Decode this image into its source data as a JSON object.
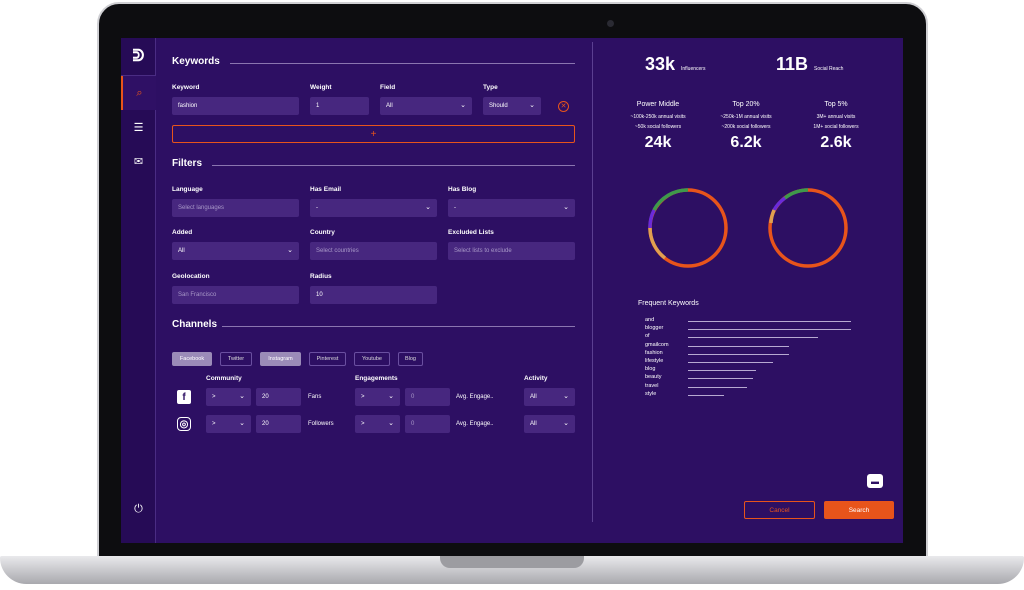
{
  "sidebar": {
    "logo_text": "ᕲ",
    "items": [
      {
        "icon": "search-icon",
        "glyph": "⌕"
      },
      {
        "icon": "list-icon",
        "glyph": "☰"
      },
      {
        "icon": "mail-icon",
        "glyph": "✉"
      }
    ],
    "power_glyph": "⏻"
  },
  "keywords": {
    "title": "Keywords",
    "col_keyword": "Keyword",
    "col_weight": "Weight",
    "col_field": "Field",
    "col_type": "Type",
    "keyword_value": "fashion",
    "weight_value": "1",
    "field_value": "All",
    "type_value": "Should",
    "add_glyph": "+",
    "remove_glyph": "✕"
  },
  "filters": {
    "title": "Filters",
    "language_label": "Language",
    "language_placeholder": "Select languages",
    "has_email_label": "Has Email",
    "has_email_value": "-",
    "has_blog_label": "Has Blog",
    "has_blog_value": "-",
    "added_label": "Added",
    "added_value": "All",
    "country_label": "Country",
    "country_placeholder": "Select countries",
    "excluded_label": "Excluded Lists",
    "excluded_placeholder": "Select lists to exclude",
    "geolocation_label": "Geolocation",
    "geolocation_placeholder": "San Francisco",
    "radius_label": "Radius",
    "radius_value": "10"
  },
  "channels": {
    "title": "Channels",
    "chips": [
      "Facebook",
      "Twitter",
      "Instagram",
      "Pinterest",
      "Youtube",
      "Blog"
    ],
    "community_label": "Community",
    "engagements_label": "Engagements",
    "activity_label": "Activity",
    "rows": [
      {
        "network": "facebook",
        "icon": "f",
        "op": ">",
        "community": "20",
        "unit": "Fans",
        "eng_op": ">",
        "eng_value": "0",
        "eng_unit": "Avg. Engage..",
        "activity": "All"
      },
      {
        "network": "instagram",
        "icon": "◎",
        "op": ">",
        "community": "20",
        "unit": "Followers",
        "eng_op": ">",
        "eng_value": "0",
        "eng_unit": "Avg. Engage..",
        "activity": "All"
      }
    ]
  },
  "stats": {
    "influencers_value": "33k",
    "influencers_label": "Influencers",
    "reach_value": "11B",
    "reach_label": "Social Reach",
    "tiers": [
      {
        "title": "Power Middle",
        "line1": "~100k-250k annual visits",
        "line2": "~50k social followers",
        "value": "24k"
      },
      {
        "title": "Top 20%",
        "line1": "~250k-1M annual visits",
        "line2": "~200k social followers",
        "value": "6.2k"
      },
      {
        "title": "Top 5%",
        "line1": "3M+ annual visits",
        "line2": "1M+ social followers",
        "value": "2.6k"
      }
    ]
  },
  "keywords_chart": {
    "title": "Frequent Keywords",
    "items": [
      "and",
      "blogger",
      "of",
      "gmailcom",
      "fashion",
      "lifestyle",
      "blog",
      "beauty",
      "travel",
      "style"
    ],
    "values": [
      100,
      100,
      80,
      62,
      62,
      52,
      42,
      40,
      36,
      22
    ]
  },
  "actions": {
    "cancel": "Cancel",
    "search": "Search",
    "chat_glyph": "💬"
  },
  "colors": {
    "accent": "#e8541b",
    "background": "#2d0f63"
  }
}
